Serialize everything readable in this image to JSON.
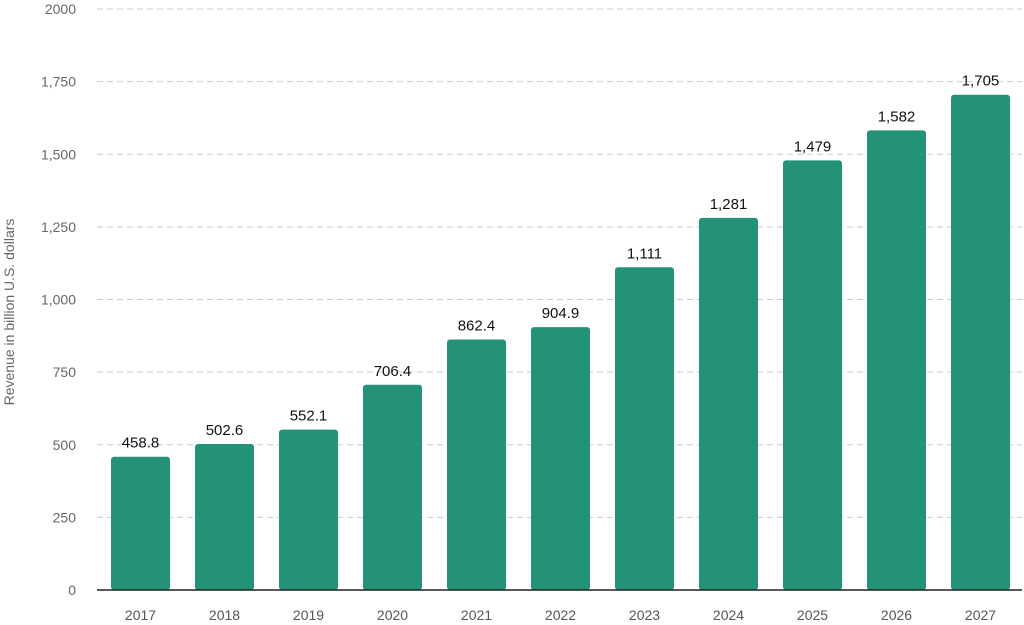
{
  "chart_data": {
    "type": "bar",
    "title": "",
    "xlabel": "",
    "ylabel": "Revenue in billion U.S. dollars",
    "categories": [
      "2017",
      "2018",
      "2019",
      "2020",
      "2021",
      "2022",
      "2023",
      "2024",
      "2025",
      "2026",
      "2027"
    ],
    "values": [
      458.8,
      502.6,
      552.1,
      706.4,
      862.4,
      904.9,
      1111,
      1281,
      1479,
      1582,
      1705
    ],
    "data_labels": [
      "458.8",
      "502.6",
      "552.1",
      "706.4",
      "862.4",
      "904.9",
      "1,111",
      "1,281",
      "1,479",
      "1,582",
      "1,705"
    ],
    "ylim": [
      0,
      2000
    ],
    "yticks": [
      0,
      250,
      500,
      750,
      1000,
      1250,
      1500,
      1750,
      2000
    ],
    "ytick_labels": [
      "0",
      "250",
      "500",
      "750",
      "1,000",
      "1,250",
      "1,500",
      "1,750",
      "2000"
    ],
    "grid": true,
    "bar_color": "#239277"
  }
}
